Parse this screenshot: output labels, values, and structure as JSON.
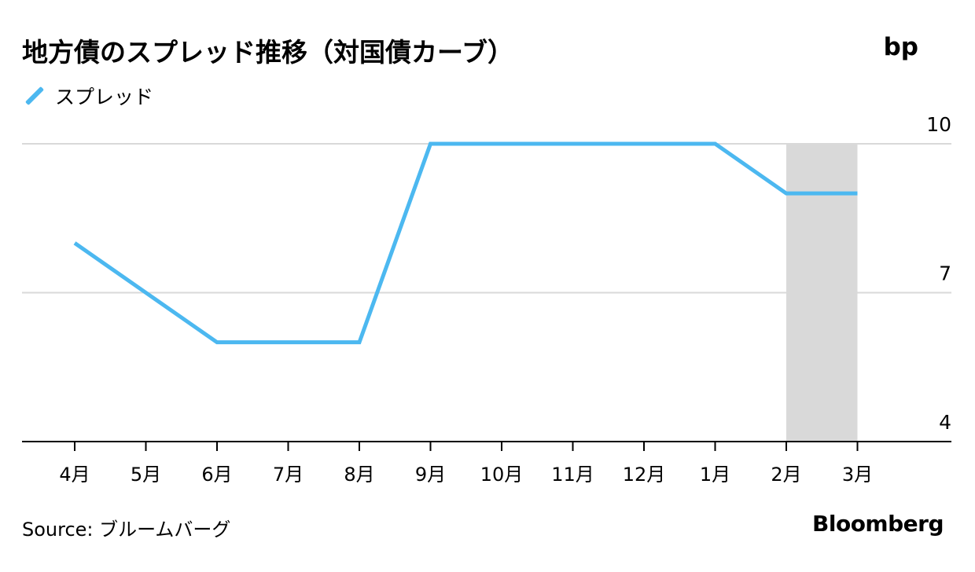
{
  "title": "地方債のスプレッド推移（対国債カーブ）",
  "unit": "bp",
  "source": "Source: ブルームバーグ",
  "brand": "Bloomberg",
  "colors": {
    "line": "#4cb8f0",
    "grid": "#d9d9d9",
    "axis": "#000000",
    "shade": "#d9d9d9"
  },
  "chart_data": {
    "type": "line",
    "categories": [
      "4月",
      "5月",
      "6月",
      "7月",
      "8月",
      "9月",
      "10月",
      "11月",
      "12月",
      "1月",
      "2月",
      "3月"
    ],
    "series": [
      {
        "name": "スプレッド",
        "values": [
          8,
          7,
          6,
          6,
          6,
          10,
          10,
          10,
          10,
          10,
          9,
          9
        ]
      }
    ],
    "ylim": [
      4,
      10
    ],
    "yticks": [
      4,
      7,
      10
    ],
    "y_axis_side": "right",
    "grid": true,
    "legend": "top-left",
    "shaded_categories": [
      "2月",
      "3月"
    ]
  }
}
